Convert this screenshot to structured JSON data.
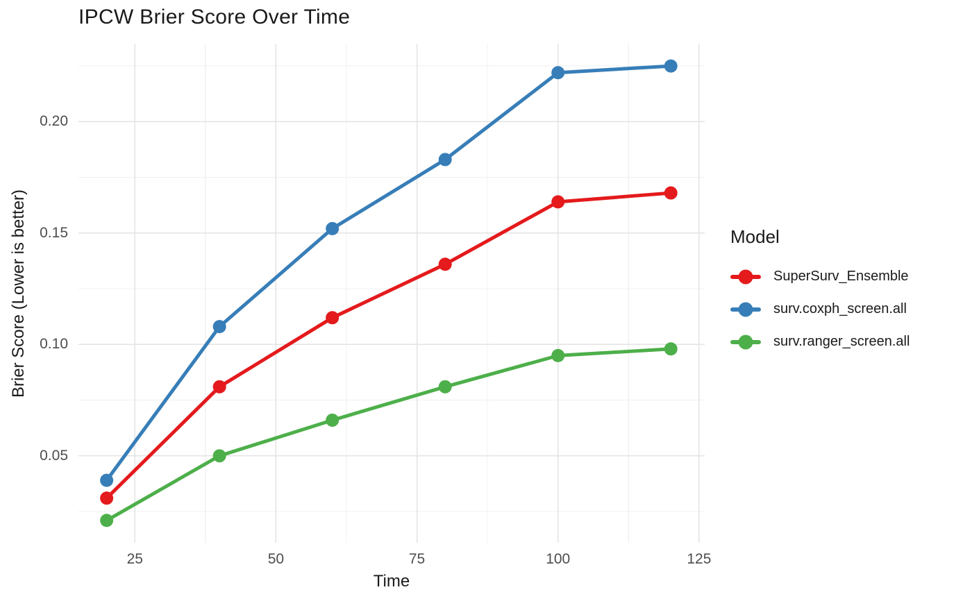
{
  "chart_data": {
    "type": "line",
    "title": "IPCW Brier Score Over Time",
    "xlabel": "Time",
    "ylabel": "Brier Score (Lower is better)",
    "legend": {
      "title": "Model",
      "position": "right"
    },
    "background": "#FFFFFF",
    "grid": {
      "show": true,
      "major_color": "#E3E3E3",
      "minor_color": "#F0F0F0",
      "x_minor": [
        37.5,
        62.5,
        87.5,
        112.5
      ],
      "y_minor": [
        0.025,
        0.075,
        0.125,
        0.175,
        0.225
      ]
    },
    "xlim": [
      15,
      126
    ],
    "ylim": [
      0.011,
      0.235
    ],
    "x_ticks": [
      {
        "value": 25,
        "label": "25"
      },
      {
        "value": 50,
        "label": "50"
      },
      {
        "value": 75,
        "label": "75"
      },
      {
        "value": 100,
        "label": "100"
      },
      {
        "value": 125,
        "label": "125"
      }
    ],
    "y_ticks": [
      {
        "value": 0.05,
        "label": "0.05"
      },
      {
        "value": 0.1,
        "label": "0.10"
      },
      {
        "value": 0.15,
        "label": "0.15"
      },
      {
        "value": 0.2,
        "label": "0.20"
      }
    ],
    "x": [
      20,
      40,
      60,
      80,
      100,
      120
    ],
    "series": [
      {
        "name": "SuperSurv_Ensemble",
        "color": "#E41A1C",
        "values": [
          0.031,
          0.081,
          0.112,
          0.136,
          0.164,
          0.168
        ]
      },
      {
        "name": "surv.coxph_screen.all",
        "color": "#377EB8",
        "values": [
          0.039,
          0.108,
          0.152,
          0.183,
          0.222,
          0.225
        ]
      },
      {
        "name": "surv.ranger_screen.all",
        "color": "#4DAF4A",
        "values": [
          0.021,
          0.05,
          0.066,
          0.081,
          0.095,
          0.098
        ]
      }
    ],
    "style": {
      "line_width": 5,
      "point_radius": 9.5,
      "axis_text_color": "#4D4D4D",
      "text_color": "#1A1A1A"
    }
  }
}
